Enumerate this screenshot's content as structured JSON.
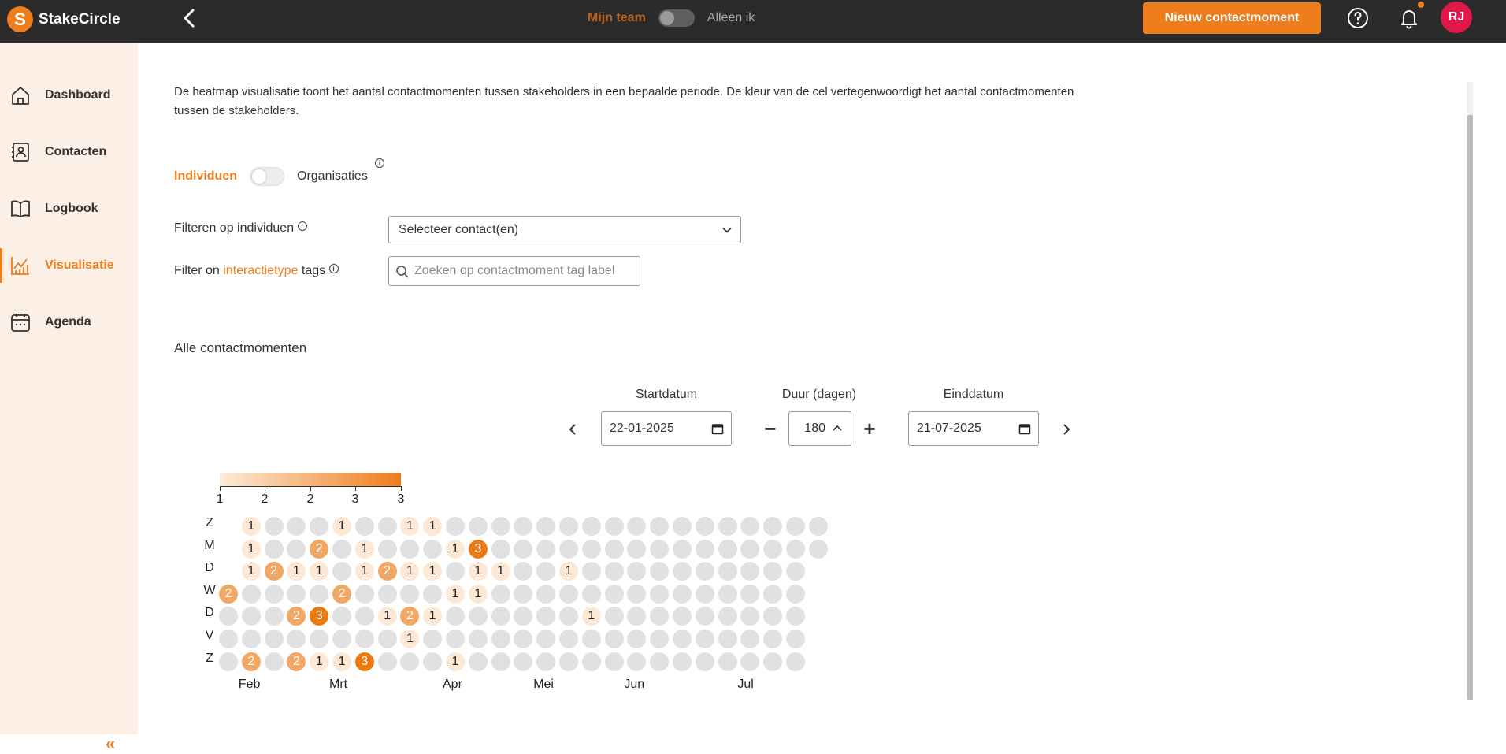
{
  "app": {
    "name": "StakeCircle",
    "logo_letter": "S"
  },
  "header": {
    "team_label": "Mijn team",
    "only_me_label": "Alleen ik",
    "new_contact_label": "Nieuw contactmoment",
    "avatar_initials": "RJ"
  },
  "sidebar": {
    "items": [
      {
        "label": "Dashboard",
        "icon": "home-icon",
        "active": false
      },
      {
        "label": "Contacten",
        "icon": "contact-book-icon",
        "active": false
      },
      {
        "label": "Logbook",
        "icon": "book-icon",
        "active": false
      },
      {
        "label": "Visualisatie",
        "icon": "chart-icon",
        "active": true
      },
      {
        "label": "Agenda",
        "icon": "calendar-icon",
        "active": false
      }
    ],
    "collapse_label": "«"
  },
  "main": {
    "description": "De heatmap visualisatie toont het aantal contactmomenten tussen stakeholders in een bepaalde periode. De kleur van de cel vertegenwoordigt het aantal contactmomenten tussen de stakeholders.",
    "toggle_left": "Individuen",
    "toggle_right": "Organisaties",
    "filter_individuals_label": "Filteren op individuen",
    "filter_individuals_value": "Selecteer contact(en)",
    "filter_tags_prefix": "Filter on ",
    "filter_tags_accent": "interactietype",
    "filter_tags_suffix": " tags",
    "filter_tags_placeholder": "Zoeken op contactmoment tag label",
    "section_title": "Alle contactmomenten",
    "start_label": "Startdatum",
    "start_value": "22-01-2025",
    "duration_label": "Duur (dagen)",
    "duration_value": "180",
    "end_label": "Einddatum",
    "end_value": "21-07-2025",
    "minus_label": "−",
    "plus_label": "+"
  },
  "colors": {
    "accent": "#ee7d1c",
    "empty_cell": "#e1e1e1",
    "level1": "#fde8d6",
    "level2": "#f1a865",
    "level3": "#ea7a11"
  },
  "chart_data": {
    "type": "heatmap",
    "legend_ticks": [
      "1",
      "2",
      "2",
      "3",
      "3"
    ],
    "day_labels": [
      "Z",
      "M",
      "D",
      "W",
      "D",
      "V",
      "Z"
    ],
    "month_labels": [
      "Feb",
      "Mrt",
      "Apr",
      "Mei",
      "Jun",
      "Jul"
    ],
    "month_week_index": [
      1,
      5,
      10,
      14,
      18,
      23
    ],
    "week_count": 27,
    "rows": [
      {
        "start": 1,
        "values": [
          1,
          0,
          0,
          0,
          1,
          0,
          0,
          1,
          1,
          0,
          0,
          0,
          0,
          0,
          0,
          0,
          0,
          0,
          0,
          0,
          0,
          0,
          0,
          0,
          0,
          0
        ]
      },
      {
        "start": 1,
        "values": [
          1,
          0,
          0,
          2,
          0,
          1,
          0,
          0,
          0,
          1,
          3,
          0,
          0,
          0,
          0,
          0,
          0,
          0,
          0,
          0,
          0,
          0,
          0,
          0,
          0,
          0
        ]
      },
      {
        "start": 1,
        "values": [
          1,
          2,
          1,
          1,
          0,
          1,
          2,
          1,
          1,
          0,
          1,
          1,
          0,
          0,
          1,
          0,
          0,
          0,
          0,
          0,
          0,
          0,
          0,
          0,
          0
        ]
      },
      {
        "start": 0,
        "values": [
          2,
          0,
          0,
          0,
          0,
          2,
          0,
          0,
          0,
          0,
          1,
          1,
          0,
          0,
          0,
          0,
          0,
          0,
          0,
          0,
          0,
          0,
          0,
          0,
          0,
          0
        ]
      },
      {
        "start": 0,
        "values": [
          0,
          0,
          0,
          2,
          3,
          0,
          0,
          1,
          2,
          1,
          0,
          0,
          0,
          0,
          0,
          0,
          1,
          0,
          0,
          0,
          0,
          0,
          0,
          0,
          0,
          0
        ]
      },
      {
        "start": 0,
        "values": [
          0,
          0,
          0,
          0,
          0,
          0,
          0,
          0,
          1,
          0,
          0,
          0,
          0,
          0,
          0,
          0,
          0,
          0,
          0,
          0,
          0,
          0,
          0,
          0,
          0,
          0
        ]
      },
      {
        "start": 0,
        "values": [
          0,
          2,
          0,
          2,
          1,
          1,
          3,
          0,
          0,
          0,
          1,
          0,
          0,
          0,
          0,
          0,
          0,
          0,
          0,
          0,
          0,
          0,
          0,
          0,
          0,
          0
        ]
      }
    ]
  }
}
